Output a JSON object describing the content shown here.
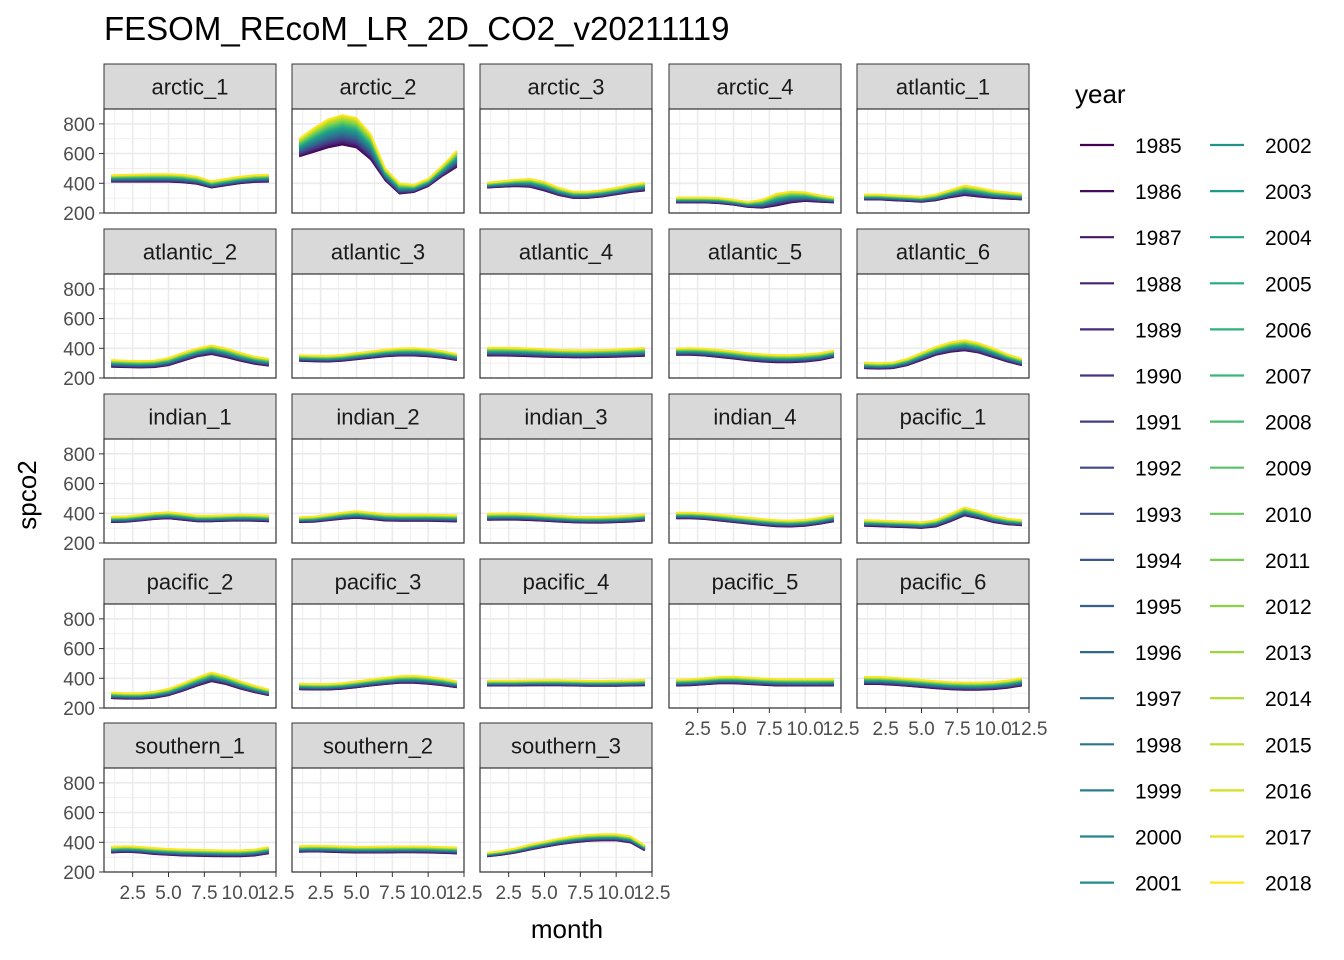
{
  "title": "FESOM_REcoM_LR_2D_CO2_v20211119",
  "chart_data": {
    "type": "line",
    "facet": "small-multiples",
    "xlabel": "month",
    "ylabel": "spco2",
    "xlim": [
      0.5,
      12.5
    ],
    "ylim": [
      200,
      900
    ],
    "x_ticks": [
      2.5,
      5.0,
      7.5,
      10.0,
      12.5
    ],
    "x_tick_labels": [
      "2.5",
      "5.0",
      "7.5",
      "10.0",
      "12.5"
    ],
    "y_ticks": [
      200,
      400,
      600,
      800
    ],
    "y_tick_labels": [
      "200",
      "400",
      "600",
      "800"
    ],
    "legend": {
      "title": "year",
      "position": "right",
      "years": [
        "1985",
        "1986",
        "1987",
        "1988",
        "1989",
        "1990",
        "1991",
        "1992",
        "1993",
        "1994",
        "1995",
        "1996",
        "1997",
        "1998",
        "1999",
        "2000",
        "2001",
        "2002",
        "2003",
        "2004",
        "2005",
        "2006",
        "2007",
        "2008",
        "2009",
        "2010",
        "2011",
        "2012",
        "2013",
        "2014",
        "2015",
        "2016",
        "2017",
        "2018"
      ]
    },
    "colors": [
      "#440154",
      "#460b5e",
      "#471668",
      "#482071",
      "#472a7a",
      "#463480",
      "#433d84",
      "#404688",
      "#3c4f8a",
      "#39578c",
      "#35608d",
      "#32678e",
      "#2e6f8e",
      "#2b768e",
      "#297e8e",
      "#26858e",
      "#238c8d",
      "#21938b",
      "#1f9a89",
      "#21a285",
      "#26a882",
      "#2faf7c",
      "#3ab676",
      "#48bc6e",
      "#56c266",
      "#66c85c",
      "#77cd52",
      "#89d246",
      "#9bd73b",
      "#aed92f",
      "#c0dc25",
      "#d3df1f",
      "#e6e220",
      "#fde725"
    ],
    "shown_bottom_axis_panels": [
      "pacific_5",
      "pacific_6",
      "southern_1",
      "southern_2",
      "southern_3"
    ],
    "panels": [
      {
        "name": "arctic_1",
        "low": [
          410,
          410,
          410,
          410,
          410,
          405,
          395,
          370,
          385,
          400,
          408,
          410
        ],
        "high": [
          455,
          458,
          460,
          462,
          462,
          458,
          445,
          415,
          430,
          445,
          455,
          458
        ]
      },
      {
        "name": "arctic_2",
        "low": [
          580,
          610,
          640,
          660,
          640,
          560,
          420,
          330,
          340,
          380,
          450,
          510
        ],
        "high": [
          700,
          770,
          830,
          860,
          840,
          730,
          500,
          400,
          390,
          430,
          520,
          620
        ]
      },
      {
        "name": "arctic_3",
        "low": [
          370,
          375,
          380,
          375,
          350,
          320,
          300,
          300,
          310,
          325,
          340,
          350
        ],
        "high": [
          405,
          415,
          425,
          430,
          410,
          370,
          345,
          345,
          355,
          370,
          390,
          405
        ]
      },
      {
        "name": "arctic_4",
        "low": [
          270,
          270,
          270,
          265,
          255,
          240,
          235,
          250,
          270,
          280,
          275,
          270
        ],
        "high": [
          305,
          305,
          305,
          302,
          290,
          275,
          290,
          330,
          345,
          340,
          320,
          305
        ]
      },
      {
        "name": "atlantic_1",
        "low": [
          290,
          290,
          285,
          280,
          275,
          285,
          305,
          320,
          310,
          300,
          295,
          290
        ],
        "high": [
          325,
          325,
          320,
          315,
          310,
          325,
          355,
          385,
          370,
          350,
          340,
          330
        ]
      },
      {
        "name": "atlantic_2",
        "low": [
          275,
          272,
          270,
          272,
          285,
          315,
          345,
          360,
          340,
          315,
          295,
          282
        ],
        "high": [
          322,
          318,
          315,
          318,
          335,
          370,
          400,
          420,
          400,
          370,
          345,
          330
        ]
      },
      {
        "name": "atlantic_3",
        "low": [
          315,
          312,
          310,
          315,
          325,
          335,
          345,
          350,
          350,
          345,
          335,
          320
        ],
        "high": [
          355,
          352,
          350,
          356,
          368,
          380,
          392,
          400,
          402,
          395,
          382,
          362
        ]
      },
      {
        "name": "atlantic_4",
        "low": [
          350,
          350,
          348,
          345,
          342,
          340,
          338,
          338,
          340,
          342,
          345,
          348
        ],
        "high": [
          405,
          405,
          403,
          400,
          395,
          390,
          388,
          388,
          390,
          393,
          398,
          403
        ]
      },
      {
        "name": "atlantic_5",
        "low": [
          355,
          355,
          350,
          340,
          330,
          318,
          310,
          305,
          305,
          310,
          320,
          340
        ],
        "high": [
          400,
          402,
          398,
          390,
          380,
          368,
          360,
          355,
          355,
          360,
          368,
          385
        ]
      },
      {
        "name": "atlantic_6",
        "low": [
          265,
          262,
          265,
          285,
          320,
          355,
          375,
          385,
          370,
          340,
          310,
          285
        ],
        "high": [
          305,
          300,
          305,
          330,
          370,
          410,
          440,
          455,
          435,
          400,
          360,
          330
        ]
      },
      {
        "name": "indian_1",
        "low": [
          340,
          342,
          350,
          360,
          365,
          355,
          345,
          345,
          348,
          350,
          348,
          345
        ],
        "high": [
          378,
          380,
          390,
          402,
          408,
          398,
          385,
          385,
          388,
          392,
          390,
          385
        ]
      },
      {
        "name": "indian_2",
        "low": [
          340,
          342,
          352,
          362,
          368,
          360,
          350,
          348,
          348,
          348,
          346,
          344
        ],
        "high": [
          375,
          378,
          390,
          405,
          415,
          405,
          395,
          392,
          392,
          392,
          390,
          388
        ]
      },
      {
        "name": "indian_3",
        "low": [
          355,
          356,
          356,
          353,
          348,
          343,
          338,
          336,
          336,
          339,
          343,
          350
        ],
        "high": [
          398,
          400,
          400,
          396,
          390,
          384,
          378,
          376,
          377,
          380,
          386,
          394
        ]
      },
      {
        "name": "indian_4",
        "low": [
          365,
          365,
          360,
          350,
          340,
          330,
          320,
          312,
          310,
          315,
          328,
          345
        ],
        "high": [
          405,
          405,
          400,
          392,
          382,
          372,
          362,
          355,
          352,
          357,
          370,
          388
        ]
      },
      {
        "name": "pacific_1",
        "low": [
          315,
          312,
          308,
          305,
          300,
          310,
          345,
          385,
          365,
          340,
          325,
          318
        ],
        "high": [
          355,
          352,
          348,
          345,
          340,
          355,
          395,
          440,
          415,
          385,
          365,
          355
        ]
      },
      {
        "name": "pacific_2",
        "low": [
          265,
          262,
          262,
          268,
          285,
          315,
          350,
          380,
          360,
          330,
          305,
          285
        ],
        "high": [
          305,
          300,
          300,
          310,
          330,
          365,
          405,
          440,
          415,
          380,
          350,
          325
        ]
      },
      {
        "name": "pacific_3",
        "low": [
          325,
          323,
          323,
          328,
          338,
          350,
          360,
          368,
          368,
          362,
          352,
          338
        ],
        "high": [
          365,
          362,
          362,
          368,
          380,
          393,
          405,
          415,
          418,
          410,
          398,
          380
        ]
      },
      {
        "name": "pacific_4",
        "low": [
          350,
          350,
          350,
          352,
          352,
          352,
          350,
          348,
          348,
          348,
          350,
          352
        ],
        "high": [
          385,
          385,
          385,
          387,
          388,
          388,
          386,
          384,
          384,
          385,
          387,
          390
        ]
      },
      {
        "name": "pacific_5",
        "low": [
          350,
          352,
          358,
          365,
          365,
          360,
          355,
          350,
          350,
          350,
          350,
          350
        ],
        "high": [
          392,
          395,
          402,
          410,
          412,
          406,
          400,
          396,
          395,
          395,
          395,
          396
        ]
      },
      {
        "name": "pacific_6",
        "low": [
          360,
          360,
          355,
          348,
          340,
          332,
          325,
          322,
          322,
          326,
          335,
          350
        ],
        "high": [
          410,
          410,
          405,
          398,
          390,
          382,
          375,
          372,
          372,
          376,
          386,
          402
        ]
      },
      {
        "name": "southern_1",
        "low": [
          330,
          335,
          330,
          320,
          315,
          310,
          308,
          306,
          305,
          305,
          310,
          325
        ],
        "high": [
          370,
          375,
          370,
          362,
          356,
          352,
          350,
          348,
          346,
          346,
          352,
          368
        ]
      },
      {
        "name": "southern_2",
        "low": [
          335,
          337,
          335,
          332,
          330,
          330,
          330,
          331,
          331,
          330,
          327,
          324
        ],
        "high": [
          375,
          378,
          376,
          373,
          371,
          371,
          372,
          373,
          373,
          372,
          369,
          366
        ]
      },
      {
        "name": "southern_3",
        "low": [
          305,
          315,
          330,
          350,
          368,
          385,
          398,
          408,
          412,
          412,
          398,
          345
        ],
        "high": [
          330,
          342,
          360,
          385,
          405,
          425,
          440,
          450,
          455,
          455,
          440,
          380
        ]
      }
    ]
  }
}
